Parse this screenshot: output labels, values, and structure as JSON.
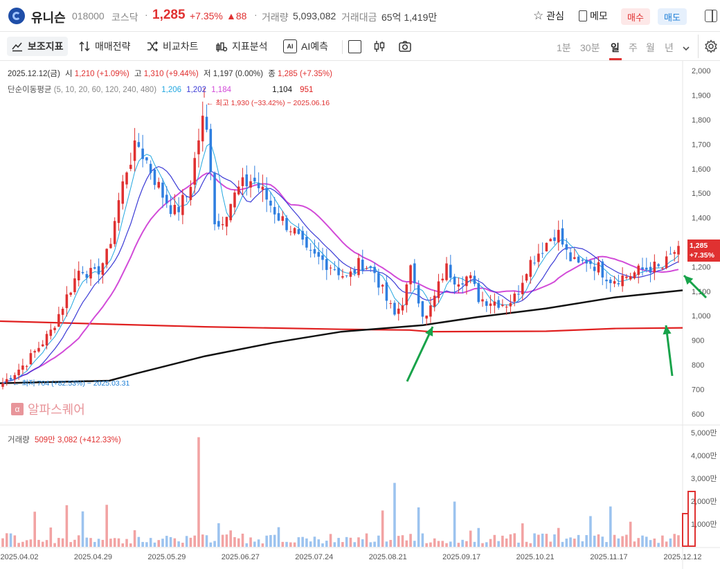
{
  "header": {
    "stock_name": "유니슨",
    "code": "018000",
    "market": "코스닥",
    "price": "1,285",
    "change_pct": "+7.35%",
    "change_abs": "▲88",
    "volume_label": "거래량",
    "volume_value": "5,093,082",
    "amount_label": "거래대금",
    "amount_value": "65억 1,419만",
    "watch_label": "관심",
    "memo_label": "메모",
    "buy_label": "매수",
    "sell_label": "매도"
  },
  "toolbar": {
    "items": [
      "보조지표",
      "매매전략",
      "비교차트",
      "지표분석",
      "AI예측"
    ],
    "periods": [
      "1분",
      "30분",
      "일",
      "주",
      "월",
      "년"
    ],
    "active_period": "일"
  },
  "legend": {
    "date": "2025.12.12(금)",
    "open_label": "시",
    "open_value": "1,210 (+1.09%)",
    "high_label": "고",
    "high_value": "1,310 (+9.44%)",
    "low_label": "저",
    "low_value": "1,197 (0.00%)",
    "close_label": "종",
    "close_value": "1,285 (+7.35%)",
    "ma_label": "단순이동평균",
    "ma_periods": "(5, 10, 20, 60, 120, 240, 480)",
    "ma_values": [
      "1,206",
      "1,202",
      "1,184",
      "1,104",
      "951"
    ],
    "ma_colors": [
      "#22a7e0",
      "#3b3bd6",
      "#d24bd8",
      "#111111",
      "#e02020"
    ]
  },
  "annotations": {
    "high": "← 최고 1,930 (−33.42%) − 2025.06.16",
    "low": "← 최저 704 (+82.53%) − 2025.03.31",
    "watermark": "알파스퀘어",
    "price_tag_value": "1,285",
    "price_tag_pct": "+7.35%"
  },
  "volume_legend": {
    "label": "거래량",
    "value": "509만",
    "ma": "3,082",
    "pct": "(+412.33%)"
  },
  "colors": {
    "up": "#e03131",
    "down": "#2f7fe0",
    "vol_up": "#f2a3a3",
    "vol_down": "#9cc3ef",
    "arrow": "#18a34a",
    "accent": "#e03131"
  },
  "chart_data": {
    "type": "candlestick",
    "x_labels": [
      "2025.04.02",
      "2025.04.29",
      "2025.05.29",
      "2025.06.27",
      "2025.07.24",
      "2025.08.21",
      "2025.09.17",
      "2025.10.21",
      "2025.11.17",
      "2025.12.12"
    ],
    "price_axis": [
      "2,000",
      "1,900",
      "1,800",
      "1,700",
      "1,600",
      "1,500",
      "1,400",
      "1,300",
      "1,200",
      "1,100",
      "1,000",
      "900",
      "800",
      "700",
      "600"
    ],
    "volume_axis": [
      "5,000만",
      "4,000만",
      "3,000만",
      "2,000만",
      "1,000만"
    ],
    "ylim": [
      560,
      2040
    ],
    "close_path": [
      [
        0.0,
        725
      ],
      [
        0.035,
        810
      ],
      [
        0.07,
        930
      ],
      [
        0.095,
        1080
      ],
      [
        0.115,
        1200
      ],
      [
        0.135,
        1160
      ],
      [
        0.155,
        1250
      ],
      [
        0.17,
        1450
      ],
      [
        0.185,
        1620
      ],
      [
        0.2,
        1700
      ],
      [
        0.215,
        1620
      ],
      [
        0.235,
        1500
      ],
      [
        0.255,
        1420
      ],
      [
        0.275,
        1500
      ],
      [
        0.295,
        1800
      ],
      [
        0.305,
        1720
      ],
      [
        0.315,
        1340
      ],
      [
        0.33,
        1430
      ],
      [
        0.35,
        1520
      ],
      [
        0.37,
        1560
      ],
      [
        0.39,
        1480
      ],
      [
        0.41,
        1400
      ],
      [
        0.43,
        1350
      ],
      [
        0.45,
        1250
      ],
      [
        0.47,
        1230
      ],
      [
        0.49,
        1200
      ],
      [
        0.51,
        1150
      ],
      [
        0.53,
        1220
      ],
      [
        0.55,
        1180
      ],
      [
        0.565,
        1080
      ],
      [
        0.58,
        1000
      ],
      [
        0.595,
        1080
      ],
      [
        0.605,
        1200
      ],
      [
        0.615,
        1080
      ],
      [
        0.625,
        975
      ],
      [
        0.64,
        1080
      ],
      [
        0.655,
        1200
      ],
      [
        0.67,
        1150
      ],
      [
        0.69,
        1160
      ],
      [
        0.705,
        1070
      ],
      [
        0.725,
        1060
      ],
      [
        0.745,
        1050
      ],
      [
        0.76,
        1080
      ],
      [
        0.775,
        1200
      ],
      [
        0.79,
        1250
      ],
      [
        0.805,
        1300
      ],
      [
        0.82,
        1350
      ],
      [
        0.835,
        1250
      ],
      [
        0.85,
        1200
      ],
      [
        0.865,
        1230
      ],
      [
        0.88,
        1200
      ],
      [
        0.9,
        1150
      ],
      [
        0.92,
        1160
      ],
      [
        0.94,
        1180
      ],
      [
        0.96,
        1200
      ],
      [
        0.975,
        1190
      ],
      [
        1.0,
        1285
      ]
    ],
    "ma60_path": [
      [
        0.0,
        725
      ],
      [
        0.16,
        735
      ],
      [
        0.2,
        765
      ],
      [
        0.3,
        835
      ],
      [
        0.4,
        890
      ],
      [
        0.5,
        935
      ],
      [
        0.62,
        962
      ],
      [
        0.7,
        995
      ],
      [
        0.8,
        1030
      ],
      [
        0.9,
        1075
      ],
      [
        1.0,
        1104
      ]
    ],
    "ma480_path": [
      [
        0.0,
        978
      ],
      [
        0.3,
        955
      ],
      [
        0.5,
        945
      ],
      [
        0.6,
        942
      ],
      [
        0.63,
        935
      ],
      [
        0.8,
        937
      ],
      [
        0.9,
        948
      ],
      [
        1.0,
        951
      ]
    ]
  }
}
